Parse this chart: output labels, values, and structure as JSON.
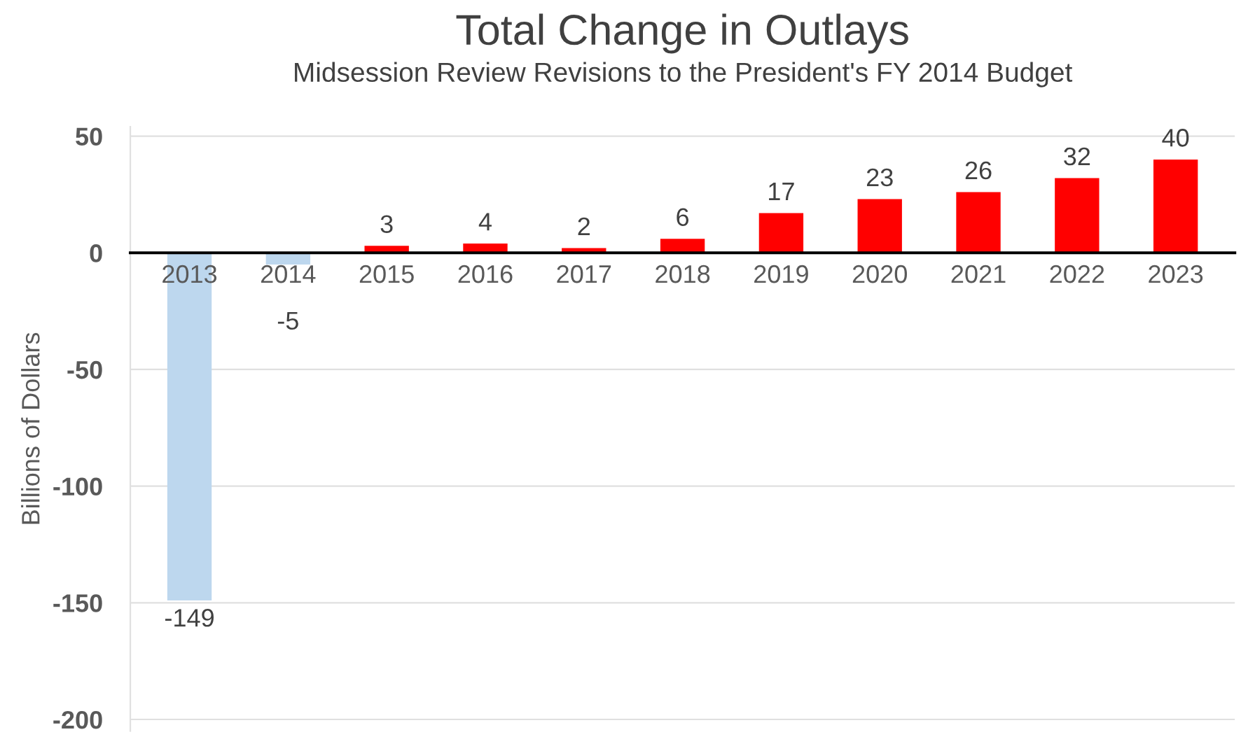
{
  "chart_data": {
    "type": "bar",
    "title": "Total Change in Outlays",
    "subtitle": "Midsession Review Revisions to the President's FY 2014 Budget",
    "ylabel": "Billions of Dollars",
    "categories": [
      "2013",
      "2014",
      "2015",
      "2016",
      "2017",
      "2018",
      "2019",
      "2020",
      "2021",
      "2022",
      "2023"
    ],
    "values": [
      -149,
      -5,
      3,
      4,
      2,
      6,
      17,
      23,
      26,
      32,
      40
    ],
    "colors": [
      "#bdd7ee",
      "#bdd7ee",
      "#ff0000",
      "#ff0000",
      "#ff0000",
      "#ff0000",
      "#ff0000",
      "#ff0000",
      "#ff0000",
      "#ff0000",
      "#ff0000"
    ],
    "ylim": [
      -205,
      54
    ],
    "yticks": [
      -200,
      -150,
      -100,
      -50,
      0,
      50
    ],
    "grid": "y",
    "data_labels": true
  }
}
